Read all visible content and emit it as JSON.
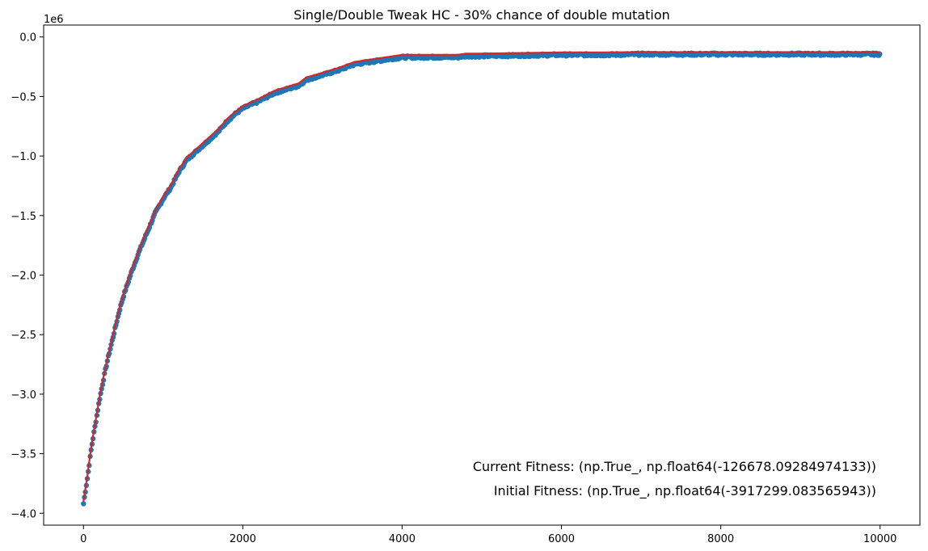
{
  "chart_data": {
    "type": "scatter",
    "title": "Single/Double Tweak HC - 30% chance of double mutation",
    "xlabel": "",
    "ylabel": "",
    "y_offset_label": "1e6",
    "xlim": [
      -500,
      10500
    ],
    "ylim": [
      -4.1,
      0.1
    ],
    "x_ticks": [
      0,
      2000,
      4000,
      6000,
      8000,
      10000
    ],
    "x_tick_labels": [
      "0",
      "2000",
      "4000",
      "6000",
      "8000",
      "10000"
    ],
    "y_ticks": [
      0.0,
      -0.5,
      -1.0,
      -1.5,
      -2.0,
      -2.5,
      -3.0,
      -3.5,
      -4.0
    ],
    "y_tick_labels": [
      "0.0",
      "−0.5",
      "−1.0",
      "−1.5",
      "−2.0",
      "−2.5",
      "−3.0",
      "−3.5",
      "−4.0"
    ],
    "grid": false,
    "series": [
      {
        "color": "#1f77b4",
        "kind": "scatter",
        "x": [
          0,
          50,
          100,
          150,
          200,
          250,
          300,
          350,
          400,
          450,
          500,
          600,
          700,
          800,
          900,
          1000,
          1100,
          1200,
          1300,
          1400,
          1500,
          1600,
          1700,
          1800,
          1900,
          2000,
          2200,
          2400,
          2600,
          2700,
          2800,
          3000,
          3200,
          3400,
          3600,
          3800,
          3900,
          4000,
          4500,
          4700,
          4800,
          5000,
          5500,
          6000,
          6500,
          7000,
          7500,
          8000,
          8500,
          9000,
          9500,
          10000
        ],
        "y": [
          -3.92,
          -3.7,
          -3.45,
          -3.25,
          -3.05,
          -2.88,
          -2.72,
          -2.58,
          -2.44,
          -2.3,
          -2.18,
          -1.98,
          -1.8,
          -1.64,
          -1.48,
          -1.36,
          -1.26,
          -1.13,
          -1.03,
          -0.97,
          -0.91,
          -0.85,
          -0.79,
          -0.71,
          -0.65,
          -0.6,
          -0.54,
          -0.47,
          -0.43,
          -0.41,
          -0.36,
          -0.32,
          -0.28,
          -0.23,
          -0.21,
          -0.19,
          -0.18,
          -0.17,
          -0.17,
          -0.17,
          -0.16,
          -0.16,
          -0.155,
          -0.15,
          -0.15,
          -0.145,
          -0.145,
          -0.145,
          -0.145,
          -0.145,
          -0.145,
          -0.145
        ]
      },
      {
        "color": "#d62728",
        "kind": "line",
        "x": [
          0,
          50,
          100,
          150,
          200,
          250,
          300,
          350,
          400,
          450,
          500,
          600,
          700,
          800,
          900,
          1000,
          1100,
          1200,
          1300,
          1400,
          1500,
          1600,
          1700,
          1800,
          1900,
          2000,
          2200,
          2400,
          2600,
          2700,
          2800,
          3000,
          3200,
          3400,
          3600,
          3800,
          3900,
          4000,
          4500,
          4700,
          4800,
          5000,
          5500,
          6000,
          6500,
          7000,
          7500,
          8000,
          8500,
          9000,
          9500,
          10000
        ],
        "y": [
          -3.9,
          -3.68,
          -3.43,
          -3.23,
          -3.03,
          -2.86,
          -2.7,
          -2.56,
          -2.42,
          -2.28,
          -2.16,
          -1.96,
          -1.78,
          -1.62,
          -1.46,
          -1.34,
          -1.24,
          -1.11,
          -1.01,
          -0.95,
          -0.89,
          -0.83,
          -0.77,
          -0.69,
          -0.63,
          -0.58,
          -0.52,
          -0.45,
          -0.41,
          -0.39,
          -0.34,
          -0.3,
          -0.26,
          -0.21,
          -0.19,
          -0.17,
          -0.16,
          -0.15,
          -0.15,
          -0.15,
          -0.14,
          -0.14,
          -0.135,
          -0.13,
          -0.13,
          -0.127,
          -0.127,
          -0.127,
          -0.127,
          -0.127,
          -0.127,
          -0.127
        ]
      }
    ],
    "annotations": [
      "Current Fitness: (np.True_, np.float64(-126678.09284974133))",
      "Initial Fitness: (np.True_, np.float64(-3917299.083565943))"
    ]
  }
}
